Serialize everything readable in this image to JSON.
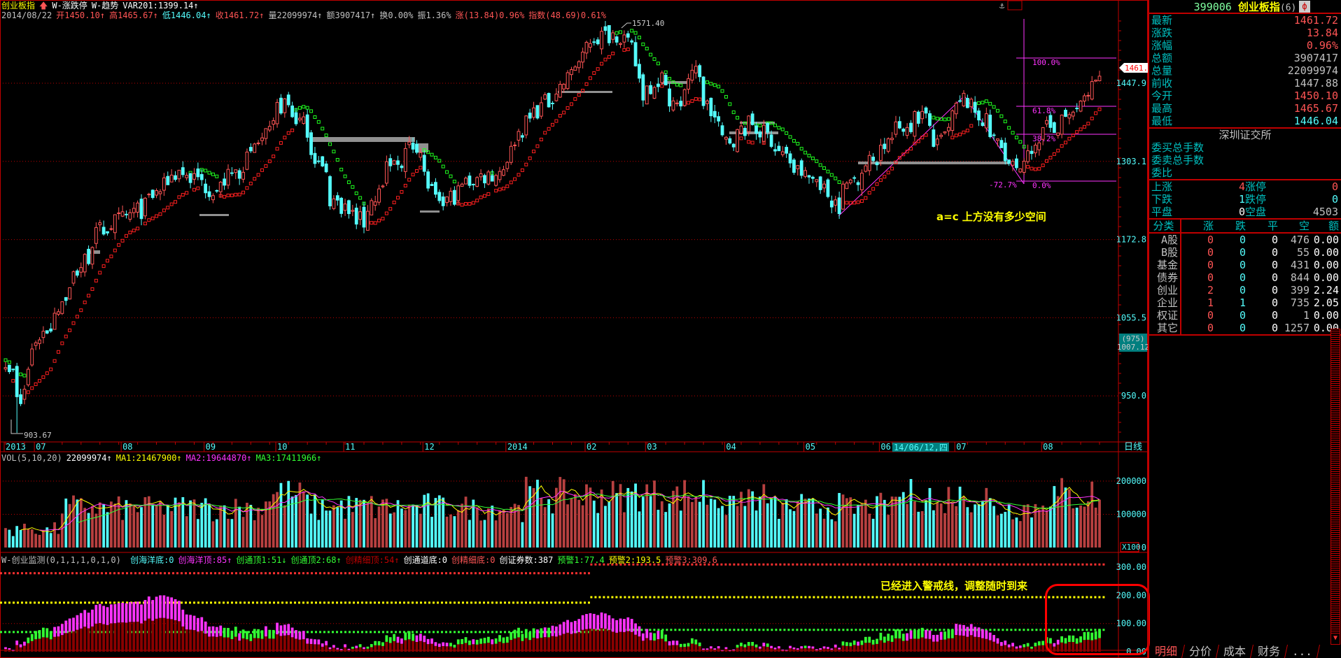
{
  "header": {
    "index_name": "创业板指",
    "study1": "W-涨跌停",
    "study2": "W-趋势",
    "var": "VAR201:1399.14↑",
    "date": "2014/08/22",
    "open": "开1450.10↑",
    "high": "高1465.67↑",
    "low": "低1446.04↑",
    "close": "收1461.72↑",
    "volume": "量22099974↑",
    "amount": "额3907417↑",
    "turnover": "换0.00%",
    "amplitude": "振1.36%",
    "change": "涨(13.84)0.96%",
    "index_change": "指数(48.69)0.61%"
  },
  "price_axis": {
    "labels": [
      "1447.9",
      "1303.1",
      "1172.8",
      "1055.5",
      "950.0"
    ],
    "current_tag": "1461.7",
    "cursor_count": "(975)",
    "cursor_price": "1007.12",
    "high_label": "1571.40",
    "low_label": "903.67",
    "period": "日线"
  },
  "date_axis": [
    {
      "label": "2013",
      "month": "2013-06"
    },
    {
      "label": "07",
      "month": "2013-07"
    },
    {
      "label": "08",
      "month": "2013-08"
    },
    {
      "label": "09",
      "month": "2013-09"
    },
    {
      "label": "10",
      "month": "2013-10"
    },
    {
      "label": "11",
      "month": "2013-11"
    },
    {
      "label": "12",
      "month": "2013-12"
    },
    {
      "label": "2014",
      "month": "2014-01"
    },
    {
      "label": "02",
      "month": "2014-02"
    },
    {
      "label": "03",
      "month": "2014-03"
    },
    {
      "label": "04",
      "month": "2014-04"
    },
    {
      "label": "05",
      "month": "2014-05"
    },
    {
      "label": "06",
      "month": "2014-06"
    },
    {
      "label": "07",
      "month": "2014-07"
    },
    {
      "label": "08",
      "month": "2014-08"
    }
  ],
  "cursor_date": "14/06/12,四",
  "fib": {
    "levels": [
      "100.0%",
      "61.8%",
      "38.2%",
      "0.0%"
    ],
    "ext": "-72.7%"
  },
  "annotations": {
    "main": "a=c 上方没有多少空间",
    "indicator": "已经进入警戒线，调整随时到来"
  },
  "volume_pane": {
    "title": "VOL(5,10,20)",
    "value": "22099974↑",
    "ma1": "MA1:21467900↑",
    "ma2": "MA2:19644870↑",
    "ma3": "MA3:17411966↑",
    "axis": [
      "200000",
      "100000",
      "0"
    ],
    "unit": "X100"
  },
  "indicator_pane": {
    "title": "W-创业监测(0,1,1,1,0,1,0)",
    "items": [
      {
        "t": "创海洋底:0",
        "c": "cyan"
      },
      {
        "t": "创海洋顶:85↑",
        "c": "mag"
      },
      {
        "t": "创通顶1:51↓",
        "c": "green"
      },
      {
        "t": "创通顶2:68↑",
        "c": "green"
      },
      {
        "t": "创精细顶:54↑",
        "c": "dred"
      },
      {
        "t": "创通道底:0",
        "c": "white"
      },
      {
        "t": "创精细底:0",
        "c": "red"
      },
      {
        "t": "创证券数:387",
        "c": "white"
      },
      {
        "t": "预警1:77.4",
        "c": "green"
      },
      {
        "t": "预警2:193.5",
        "c": "yellow"
      },
      {
        "t": "预警3:309.6",
        "c": "red"
      }
    ],
    "axis": [
      "300.00",
      "200.00",
      "100.00",
      "0.00"
    ],
    "warn": [
      77.4,
      193.5,
      309.6
    ]
  },
  "quote": {
    "code": "399006",
    "name": "创业板指",
    "count": "(6)",
    "rows": [
      {
        "k": "最新",
        "v": "1461.72",
        "c": "red"
      },
      {
        "k": "涨跌",
        "v": "13.84",
        "c": "red"
      },
      {
        "k": "涨幅",
        "v": "0.96%",
        "c": "red"
      },
      {
        "k": "总额",
        "v": "3907417",
        "c": "gray"
      },
      {
        "k": "总量",
        "v": "22099974",
        "c": "gray"
      },
      {
        "k": "前收",
        "v": "1447.88",
        "c": "gray"
      },
      {
        "k": "今开",
        "v": "1450.10",
        "c": "red"
      },
      {
        "k": "最高",
        "v": "1465.67",
        "c": "red"
      },
      {
        "k": "最低",
        "v": "1446.04",
        "c": "cyan"
      }
    ],
    "exchange": "深圳证交所",
    "orders": [
      "委买总手数",
      "委卖总手数",
      "委比"
    ],
    "breadth": [
      {
        "k1": "上涨",
        "v1": "4",
        "c1": "red",
        "k2": "涨停",
        "v2": "0",
        "c2": "red"
      },
      {
        "k1": "下跌",
        "v1": "1",
        "c1": "cyan",
        "k2": "跌停",
        "v2": "0",
        "c2": "cyan"
      },
      {
        "k1": "平盘",
        "v1": "0",
        "c1": "white",
        "k2": "空盘",
        "v2": "4503",
        "c2": "gray"
      }
    ],
    "table_header": [
      "分类",
      "涨",
      "跌",
      "平",
      "空",
      "额"
    ],
    "table": [
      [
        "A股",
        "0",
        "0",
        "0",
        "476",
        "0.00"
      ],
      [
        "B股",
        "0",
        "0",
        "0",
        "55",
        "0.00"
      ],
      [
        "基金",
        "0",
        "0",
        "0",
        "431",
        "0.00"
      ],
      [
        "债券",
        "0",
        "0",
        "0",
        "844",
        "0.00"
      ],
      [
        "创业",
        "2",
        "0",
        "0",
        "399",
        "2.24"
      ],
      [
        "企业",
        "1",
        "1",
        "0",
        "735",
        "2.05"
      ],
      [
        "权证",
        "0",
        "0",
        "0",
        "1",
        "0.00"
      ],
      [
        "其它",
        "0",
        "0",
        "0",
        "1257",
        "0.00"
      ]
    ]
  },
  "tabs": [
    "明细",
    "分价",
    "成本",
    "财务",
    "..."
  ],
  "colors": {
    "up": "#ff5555",
    "down": "#54fcfc",
    "grid": "#c00000",
    "ma1": "#ffff00",
    "ma2": "#ff33ff",
    "ma3": "#33ff33",
    "fib": "#ff33ff"
  },
  "chart_data": {
    "type": "candlestick",
    "scale": "log",
    "last_close": 1461.72,
    "high": 1571.4,
    "low": 903.67,
    "close_path": [
      [
        "2013-06-19",
        1000
      ],
      [
        "2013-06-25",
        935
      ],
      [
        "2013-06-28",
        1010
      ],
      [
        "2013-07-05",
        1045
      ],
      [
        "2013-07-24",
        1187
      ],
      [
        "2013-08-08",
        1221
      ],
      [
        "2013-08-22",
        1287
      ],
      [
        "2013-09-05",
        1254
      ],
      [
        "2013-09-30",
        1363
      ],
      [
        "2013-10-10",
        1410
      ],
      [
        "2013-10-18",
        1363
      ],
      [
        "2013-10-28",
        1240
      ],
      [
        "2013-11-08",
        1200
      ],
      [
        "2013-11-18",
        1287
      ],
      [
        "2013-11-28",
        1336
      ],
      [
        "2013-12-06",
        1221
      ],
      [
        "2013-12-18",
        1270
      ],
      [
        "2013-12-30",
        1287
      ],
      [
        "2014-01-10",
        1380
      ],
      [
        "2014-01-20",
        1427
      ],
      [
        "2014-01-28",
        1485
      ],
      [
        "2014-02-11",
        1540
      ],
      [
        "2014-02-19",
        1550
      ],
      [
        "2014-02-25",
        1515
      ],
      [
        "2014-02-28",
        1427
      ],
      [
        "2014-03-07",
        1460
      ],
      [
        "2014-03-14",
        1395
      ],
      [
        "2014-03-19",
        1477
      ],
      [
        "2014-03-31",
        1336
      ],
      [
        "2014-04-11",
        1372
      ],
      [
        "2014-04-18",
        1345
      ],
      [
        "2014-04-28",
        1287
      ],
      [
        "2014-05-09",
        1270
      ],
      [
        "2014-05-16",
        1229
      ],
      [
        "2014-05-21",
        1270
      ],
      [
        "2014-06-10",
        1363
      ],
      [
        "2014-06-18",
        1388
      ],
      [
        "2014-06-24",
        1328
      ],
      [
        "2014-07-03",
        1417
      ],
      [
        "2014-07-08",
        1395
      ],
      [
        "2014-07-17",
        1328
      ],
      [
        "2014-07-24",
        1278
      ],
      [
        "2014-07-30",
        1343
      ],
      [
        "2014-08-12",
        1388
      ],
      [
        "2014-08-18",
        1417
      ],
      [
        "2014-08-22",
        1461.72
      ]
    ]
  }
}
